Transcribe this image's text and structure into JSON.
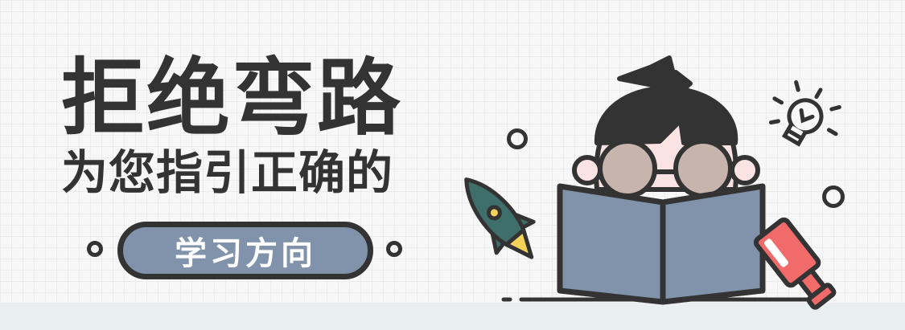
{
  "banner": {
    "headline": "拒绝弯路",
    "subheadline": "为您指引正确的",
    "button_label": "学习方向"
  },
  "palette": {
    "text": "#333333",
    "accent_blue": "#8093ab",
    "rocket_teal": "#3f6f6b",
    "rocket_yellow": "#f3d35a",
    "eraser_red": "#f26b6b",
    "lens_tan": "#c7b4ad",
    "skin": "#fbe3e3"
  }
}
